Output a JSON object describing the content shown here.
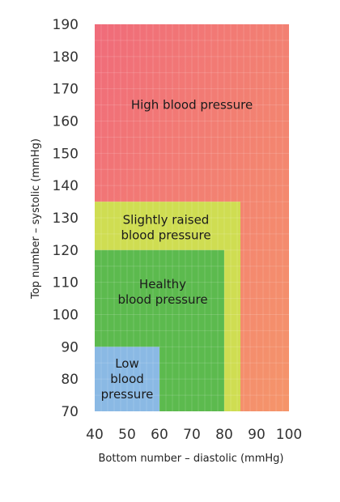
{
  "chart_data": {
    "type": "area",
    "title": "",
    "xlabel": "Bottom number – diastolic (mmHg)",
    "ylabel": "Top number – systolic (mmHg)",
    "xlim": [
      40,
      100
    ],
    "ylim": [
      70,
      190
    ],
    "x_ticks": [
      40,
      50,
      60,
      70,
      80,
      90,
      100
    ],
    "y_ticks": [
      70,
      80,
      90,
      100,
      110,
      120,
      130,
      140,
      150,
      160,
      170,
      180,
      190
    ],
    "grid": true,
    "legend": "none",
    "regions": [
      {
        "name": "High blood pressure",
        "label_lines": [
          "High blood pressure"
        ],
        "x": [
          40,
          100
        ],
        "y": [
          70,
          190
        ],
        "color": "#f06b7a",
        "color_end": "#f5956a",
        "label_at": [
          70,
          165
        ]
      },
      {
        "name": "Slightly raised blood pressure",
        "label_lines": [
          "Slightly raised",
          "blood pressure"
        ],
        "x": [
          40,
          85
        ],
        "y": [
          70,
          135
        ],
        "color": "#cfdd52",
        "label_at": [
          62,
          127
        ]
      },
      {
        "name": "Healthy blood pressure",
        "label_lines": [
          "Healthy",
          "blood pressure"
        ],
        "x": [
          40,
          80
        ],
        "y": [
          70,
          120
        ],
        "color": "#5cba4e",
        "label_at": [
          61,
          107
        ]
      },
      {
        "name": "Low blood pressure",
        "label_lines": [
          "Low",
          "blood",
          "pressure"
        ],
        "x": [
          40,
          60
        ],
        "y": [
          70,
          90
        ],
        "color": "#8ab9e4",
        "label_at": [
          50,
          80
        ]
      }
    ]
  }
}
